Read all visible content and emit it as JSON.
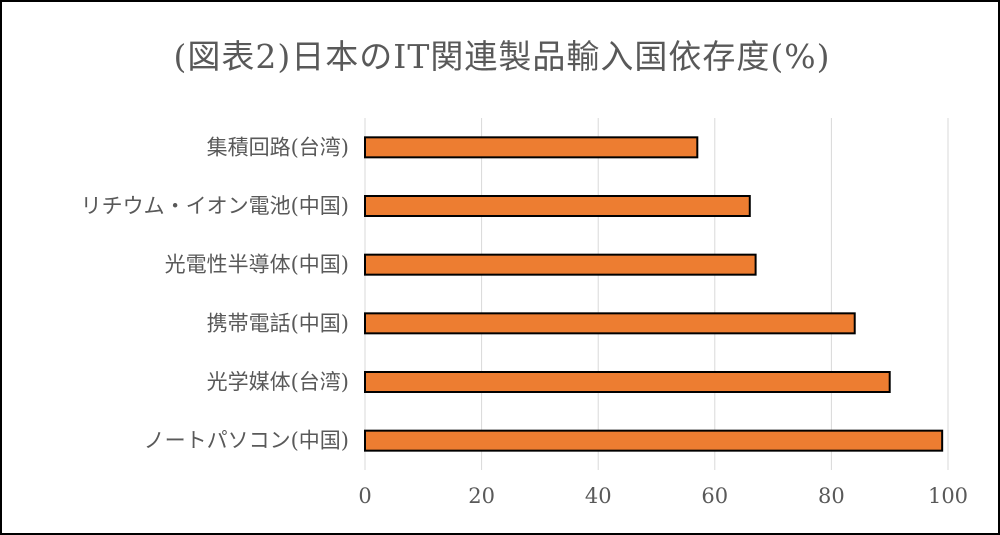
{
  "chart_data": {
    "type": "bar",
    "orientation": "horizontal",
    "title": "(図表2)日本のIT関連製品輸入国依存度(%)",
    "categories": [
      "集積回路(台湾)",
      "リチウム・イオン電池(中国)",
      "光電性半導体(中国)",
      "携帯電話(中国)",
      "光学媒体(台湾)",
      "ノートパソコン(中国)"
    ],
    "values": [
      57,
      66,
      67,
      84,
      90,
      99
    ],
    "xlim": [
      0,
      100
    ],
    "xticks": [
      0,
      20,
      40,
      60,
      80,
      100
    ],
    "xlabel": "",
    "ylabel": "",
    "grid": "vertical",
    "legend": "none",
    "bar_color": "#ED7D31",
    "bar_edge_color": "#000000"
  }
}
